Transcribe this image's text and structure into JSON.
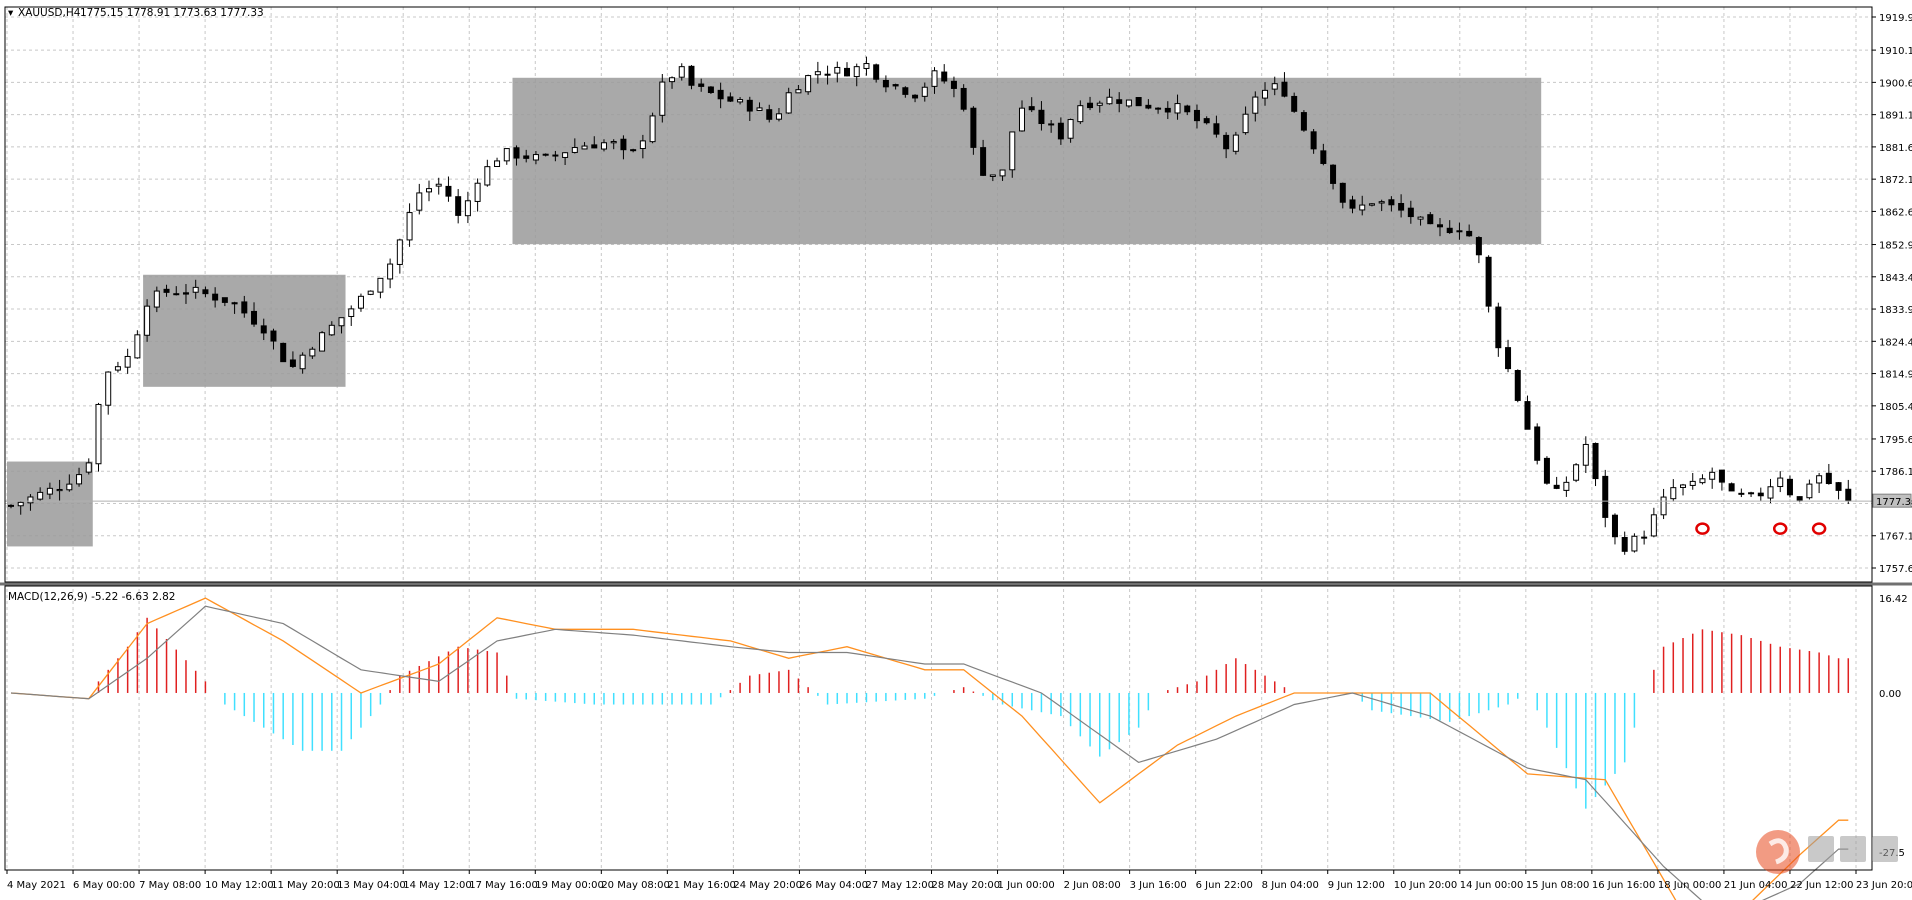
{
  "chart_data": {
    "type": "candlestick",
    "symbol_label": "XAUUSD,H4",
    "ohlc_label": "1775.15 1778.91 1773.63 1777.33",
    "price_axis": {
      "range": [
        1757.65,
        1919.9
      ],
      "ticks": [
        "1919.90",
        "1910.15",
        "1900.65",
        "1891.15",
        "1881.65",
        "1872.15",
        "1862.65",
        "1852.90",
        "1843.40",
        "1833.90",
        "1824.40",
        "1814.90",
        "1805.40",
        "1795.65",
        "1786.15",
        "1776.65",
        "1767.15",
        "1757.65"
      ],
      "current_price": "1777.33",
      "current_price_value": 1777.33
    },
    "date_axis": {
      "labels": [
        "4 May 2021",
        "6 May 00:00",
        "7 May 08:00",
        "10 May 12:00",
        "11 May 20:00",
        "13 May 04:00",
        "14 May 12:00",
        "17 May 16:00",
        "19 May 00:00",
        "20 May 08:00",
        "21 May 16:00",
        "24 May 20:00",
        "26 May 04:00",
        "27 May 12:00",
        "28 May 20:00",
        "1 Jun 00:00",
        "2 Jun 08:00",
        "3 Jun 16:00",
        "6 Jun 22:00",
        "8 Jun 04:00",
        "9 Jun 12:00",
        "10 Jun 20:00",
        "14 Jun 00:00",
        "15 Jun 08:00",
        "16 Jun 16:00",
        "18 Jun 00:00",
        "21 Jun 04:00",
        "22 Jun 12:00",
        "23 Jun 20:00"
      ]
    },
    "zones": [
      {
        "price_high": 1789,
        "price_low": 1764,
        "from_bar": 0,
        "to_bar": 8
      },
      {
        "price_high": 1844,
        "price_low": 1811,
        "from_bar": 14,
        "to_bar": 34
      },
      {
        "price_high": 1902,
        "price_low": 1853,
        "from_bar": 52,
        "to_bar": 157
      }
    ],
    "markers": [
      {
        "bar": 174,
        "price": 1771
      },
      {
        "bar": 182,
        "price": 1771
      },
      {
        "bar": 186,
        "price": 1771
      }
    ],
    "macd": {
      "label": "MACD(12,26,9) -5.22 -6.63 2.82",
      "ticks": [
        "16.42",
        "0.00",
        "-27.5"
      ],
      "range": [
        -27.5,
        16.42
      ],
      "anchors_main": [
        [
          0,
          0
        ],
        [
          8,
          -1
        ],
        [
          14,
          12
        ],
        [
          20,
          16.4
        ],
        [
          28,
          9
        ],
        [
          36,
          0
        ],
        [
          44,
          5
        ],
        [
          50,
          13
        ],
        [
          56,
          11
        ],
        [
          64,
          11
        ],
        [
          74,
          9
        ],
        [
          80,
          6
        ],
        [
          86,
          8
        ],
        [
          94,
          4
        ],
        [
          98,
          4
        ],
        [
          104,
          -4
        ],
        [
          112,
          -19
        ],
        [
          120,
          -9
        ],
        [
          126,
          -4
        ],
        [
          132,
          0
        ],
        [
          138,
          0
        ],
        [
          146,
          0
        ],
        [
          156,
          -14
        ],
        [
          164,
          -15
        ],
        [
          172,
          -38
        ],
        [
          176,
          -41
        ],
        [
          184,
          -28
        ],
        [
          188,
          -22
        ]
      ],
      "anchors_signal": [
        [
          0,
          0
        ],
        [
          8,
          -1
        ],
        [
          14,
          6
        ],
        [
          20,
          15
        ],
        [
          28,
          12
        ],
        [
          36,
          4
        ],
        [
          44,
          2
        ],
        [
          50,
          9
        ],
        [
          56,
          11
        ],
        [
          64,
          10
        ],
        [
          74,
          8
        ],
        [
          80,
          7
        ],
        [
          86,
          7
        ],
        [
          94,
          5
        ],
        [
          98,
          5
        ],
        [
          106,
          0
        ],
        [
          116,
          -12
        ],
        [
          124,
          -8
        ],
        [
          132,
          -2
        ],
        [
          138,
          0
        ],
        [
          146,
          -4
        ],
        [
          156,
          -13
        ],
        [
          162,
          -15
        ],
        [
          170,
          -30
        ],
        [
          176,
          -39
        ],
        [
          184,
          -33
        ],
        [
          188,
          -27
        ]
      ],
      "anchors_hist": [
        [
          0,
          0
        ],
        [
          8,
          0
        ],
        [
          12,
          8
        ],
        [
          14,
          13
        ],
        [
          20,
          2
        ],
        [
          22,
          -2
        ],
        [
          30,
          -10
        ],
        [
          34,
          -10
        ],
        [
          38,
          -2
        ],
        [
          40,
          3
        ],
        [
          46,
          8
        ],
        [
          50,
          7
        ],
        [
          52,
          -1
        ],
        [
          60,
          -2
        ],
        [
          72,
          -2
        ],
        [
          76,
          3
        ],
        [
          80,
          4
        ],
        [
          84,
          -2
        ],
        [
          94,
          -1
        ],
        [
          98,
          1
        ],
        [
          102,
          -2
        ],
        [
          108,
          -4
        ],
        [
          112,
          -11
        ],
        [
          116,
          -6
        ],
        [
          118,
          0
        ],
        [
          122,
          2
        ],
        [
          126,
          6
        ],
        [
          130,
          2
        ],
        [
          132,
          0
        ],
        [
          136,
          0
        ],
        [
          138,
          0
        ],
        [
          140,
          -3
        ],
        [
          148,
          -5
        ],
        [
          150,
          -4
        ],
        [
          154,
          -2
        ],
        [
          156,
          0
        ],
        [
          158,
          -6
        ],
        [
          160,
          -13
        ],
        [
          162,
          -20
        ],
        [
          166,
          -12
        ],
        [
          168,
          0
        ],
        [
          170,
          8
        ],
        [
          174,
          11
        ],
        [
          178,
          10
        ],
        [
          182,
          8
        ],
        [
          186,
          7
        ],
        [
          188,
          6
        ]
      ]
    }
  }
}
